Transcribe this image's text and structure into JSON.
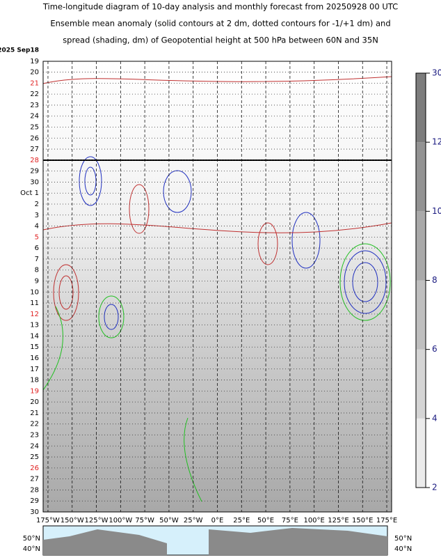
{
  "chart_data": {
    "type": "hovmoller",
    "title_lines": [
      "Time-longitude diagram of 10-day analysis and monthly forecast from 20250928 00 UTC",
      "Ensemble mean anomaly (solid contours at 2 dm, dotted contours for -1/+1 dm) and",
      "spread (shading, dm) of Geopotential height at 500 hPa between 60N and 35N"
    ],
    "categories": [
      "2025 Sep18",
      "19",
      "20",
      "21",
      "22",
      "23",
      "24",
      "25",
      "26",
      "27",
      "28",
      "29",
      "30",
      "Oct  1",
      "2",
      "3",
      "4",
      "5",
      "6",
      "7",
      "8",
      "9",
      "10",
      "11",
      "12",
      "13",
      "14",
      "15",
      "16",
      "17",
      "18",
      "19",
      "20",
      "21",
      "22",
      "23",
      "24",
      "25",
      "26",
      "27",
      "28",
      "29",
      "30"
    ],
    "category_colors": [
      "#000",
      "#000",
      "#000",
      "#e02020",
      "#000",
      "#000",
      "#000",
      "#000",
      "#000",
      "#000",
      "#e02020",
      "#000",
      "#000",
      "#000",
      "#000",
      "#000",
      "#000",
      "#e02020",
      "#000",
      "#000",
      "#000",
      "#000",
      "#000",
      "#000",
      "#e02020",
      "#000",
      "#000",
      "#000",
      "#000",
      "#000",
      "#000",
      "#e02020",
      "#000",
      "#000",
      "#000",
      "#000",
      "#000",
      "#000",
      "#e02020",
      "#000",
      "#000",
      "#000",
      "#000"
    ],
    "xlim": [
      -180,
      180
    ],
    "xticks": [
      {
        "value": -175,
        "label": "175°W"
      },
      {
        "value": -150,
        "label": "150°W"
      },
      {
        "value": -125,
        "label": "125°W"
      },
      {
        "value": -100,
        "label": "100°W"
      },
      {
        "value": -75,
        "label": "75°W"
      },
      {
        "value": -50,
        "label": "50°W"
      },
      {
        "value": -25,
        "label": "25°W"
      },
      {
        "value": 0,
        "label": "0°E"
      },
      {
        "value": 25,
        "label": "25°E"
      },
      {
        "value": 50,
        "label": "50°E"
      },
      {
        "value": 75,
        "label": "75°E"
      },
      {
        "value": 100,
        "label": "100°E"
      },
      {
        "value": 125,
        "label": "125°E"
      },
      {
        "value": 150,
        "label": "150°E"
      },
      {
        "value": 175,
        "label": "175°E"
      }
    ],
    "colorbar_levels": [
      2,
      4,
      6,
      8,
      10,
      12,
      30
    ],
    "map_labels": [
      "50°N",
      "40°N"
    ]
  }
}
